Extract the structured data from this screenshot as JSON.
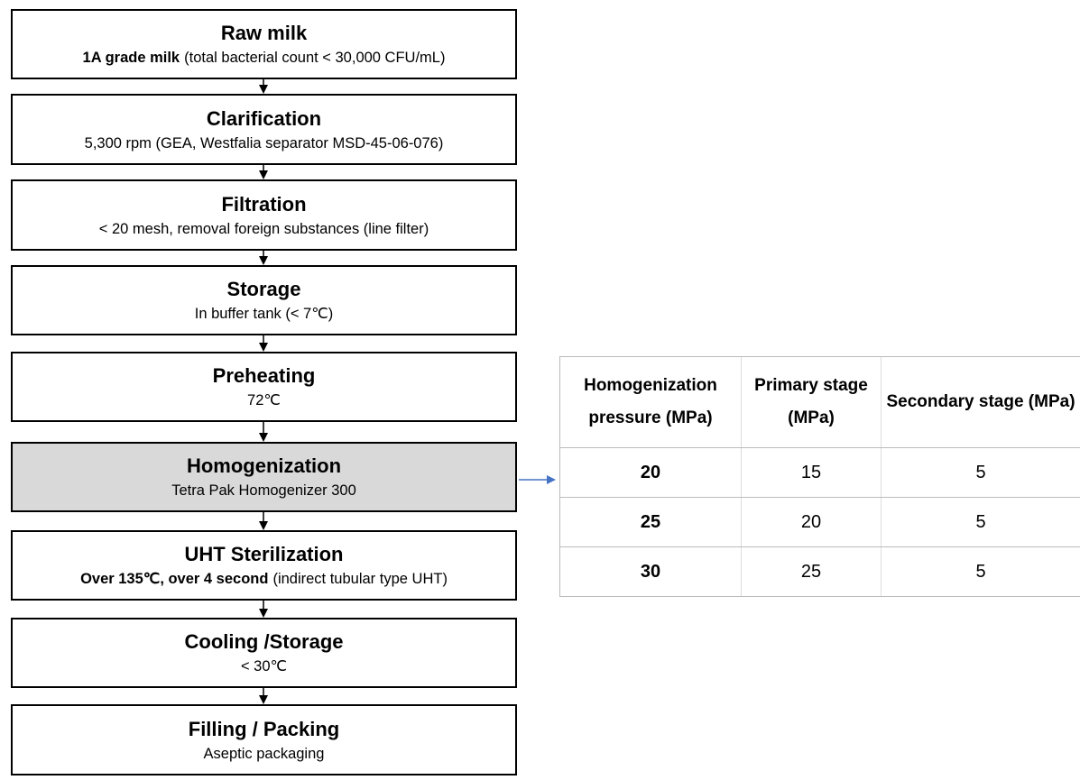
{
  "steps": [
    {
      "title": "Raw milk",
      "detail": [
        {
          "text": "1A grade milk",
          "bold": true
        },
        {
          "text": "(total bacterial count < 30,000 CFU/mL)",
          "bold": false
        }
      ]
    },
    {
      "title": "Clarification",
      "detail": [
        {
          "text": "5,300 rpm (GEA, Westfalia separator MSD-45-06-076)",
          "bold": false
        }
      ]
    },
    {
      "title": "Filtration",
      "detail": [
        {
          "text": "< 20 mesh, removal foreign substances (line filter)",
          "bold": false
        }
      ]
    },
    {
      "title": "Storage",
      "detail": [
        {
          "text": "In buffer tank (< 7℃)",
          "bold": false
        }
      ]
    },
    {
      "title": "Preheating",
      "detail": [
        {
          "text": "72℃",
          "bold": false
        }
      ]
    },
    {
      "title": "Homogenization",
      "detail": [
        {
          "text": "Tetra Pak Homogenizer 300",
          "bold": false
        }
      ],
      "highlight": true
    },
    {
      "title": "UHT Sterilization",
      "detail": [
        {
          "text": "Over 135℃, over 4 second",
          "bold": true
        },
        {
          "text": "(indirect tubular type UHT)",
          "bold": false
        }
      ]
    },
    {
      "title": "Cooling /Storage",
      "detail": [
        {
          "text": "< 30℃",
          "bold": false
        }
      ]
    },
    {
      "title": "Filling / Packing",
      "detail": [
        {
          "text": "Aseptic packaging",
          "bold": false
        }
      ]
    }
  ],
  "table": {
    "header": [
      "Homogenization pressure (MPa)",
      "Primary stage (MPa)",
      "Secondary stage (MPa)"
    ],
    "rows": [
      [
        "20",
        "15",
        "5"
      ],
      [
        "25",
        "20",
        "5"
      ],
      [
        "30",
        "25",
        "5"
      ]
    ]
  }
}
